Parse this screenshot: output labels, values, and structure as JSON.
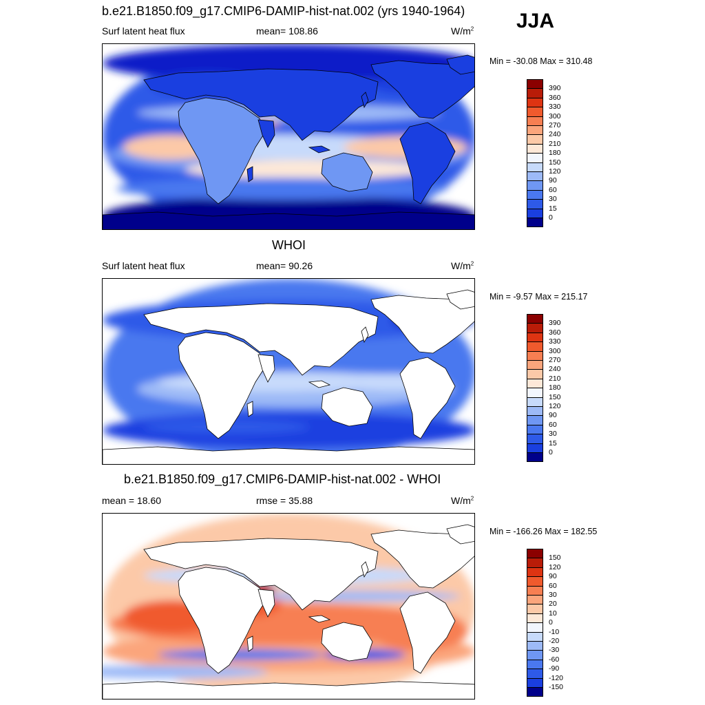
{
  "season": "JJA",
  "colors": {
    "blues": [
      "#00008b",
      "#0a1ec8",
      "#1a3fe0",
      "#2e5ae8",
      "#4a78ef",
      "#6f97f3",
      "#9dbaf7",
      "#c7dafb",
      "#f2f6fe"
    ],
    "reds": [
      "#fde8d8",
      "#fcc9a8",
      "#fba57c",
      "#f77f52",
      "#f05a2d",
      "#de3412",
      "#b91c08",
      "#8b0000"
    ],
    "land": "#ffffff",
    "coast": "#000000"
  },
  "panels": [
    {
      "title": "b.e21.B1850.f09_g17.CMIP6-DAMIP-hist-nat.002 (yrs 1940-1964)",
      "variable": "Surf latent heat flux",
      "stat": "mean= 108.86",
      "units": "W/m",
      "units_sup": "2",
      "minmax": "Min = -30.08 Max = 310.48",
      "levels": [
        "390",
        "360",
        "330",
        "300",
        "270",
        "240",
        "210",
        "180",
        "150",
        "120",
        "90",
        "60",
        "30",
        "15",
        "0"
      ],
      "land_filled": true
    },
    {
      "title": "WHOI",
      "variable": "Surf latent heat flux",
      "stat": "mean=  90.26",
      "units": "W/m",
      "units_sup": "2",
      "minmax": "Min =  -9.57 Max = 215.17",
      "levels": [
        "390",
        "360",
        "330",
        "300",
        "270",
        "240",
        "210",
        "180",
        "150",
        "120",
        "90",
        "60",
        "30",
        "15",
        "0"
      ],
      "land_filled": false
    },
    {
      "title": "b.e21.B1850.f09_g17.CMIP6-DAMIP-hist-nat.002 - WHOI",
      "variable": "mean =  18.60",
      "stat": "rmse =  35.88",
      "units": "W/m",
      "units_sup": "2",
      "minmax": "Min = -166.26 Max = 182.55",
      "levels": [
        "150",
        "120",
        "90",
        "60",
        "30",
        "20",
        "10",
        "0",
        "-10",
        "-20",
        "-30",
        "-60",
        "-90",
        "-120",
        "-150"
      ],
      "land_filled": false
    }
  ]
}
